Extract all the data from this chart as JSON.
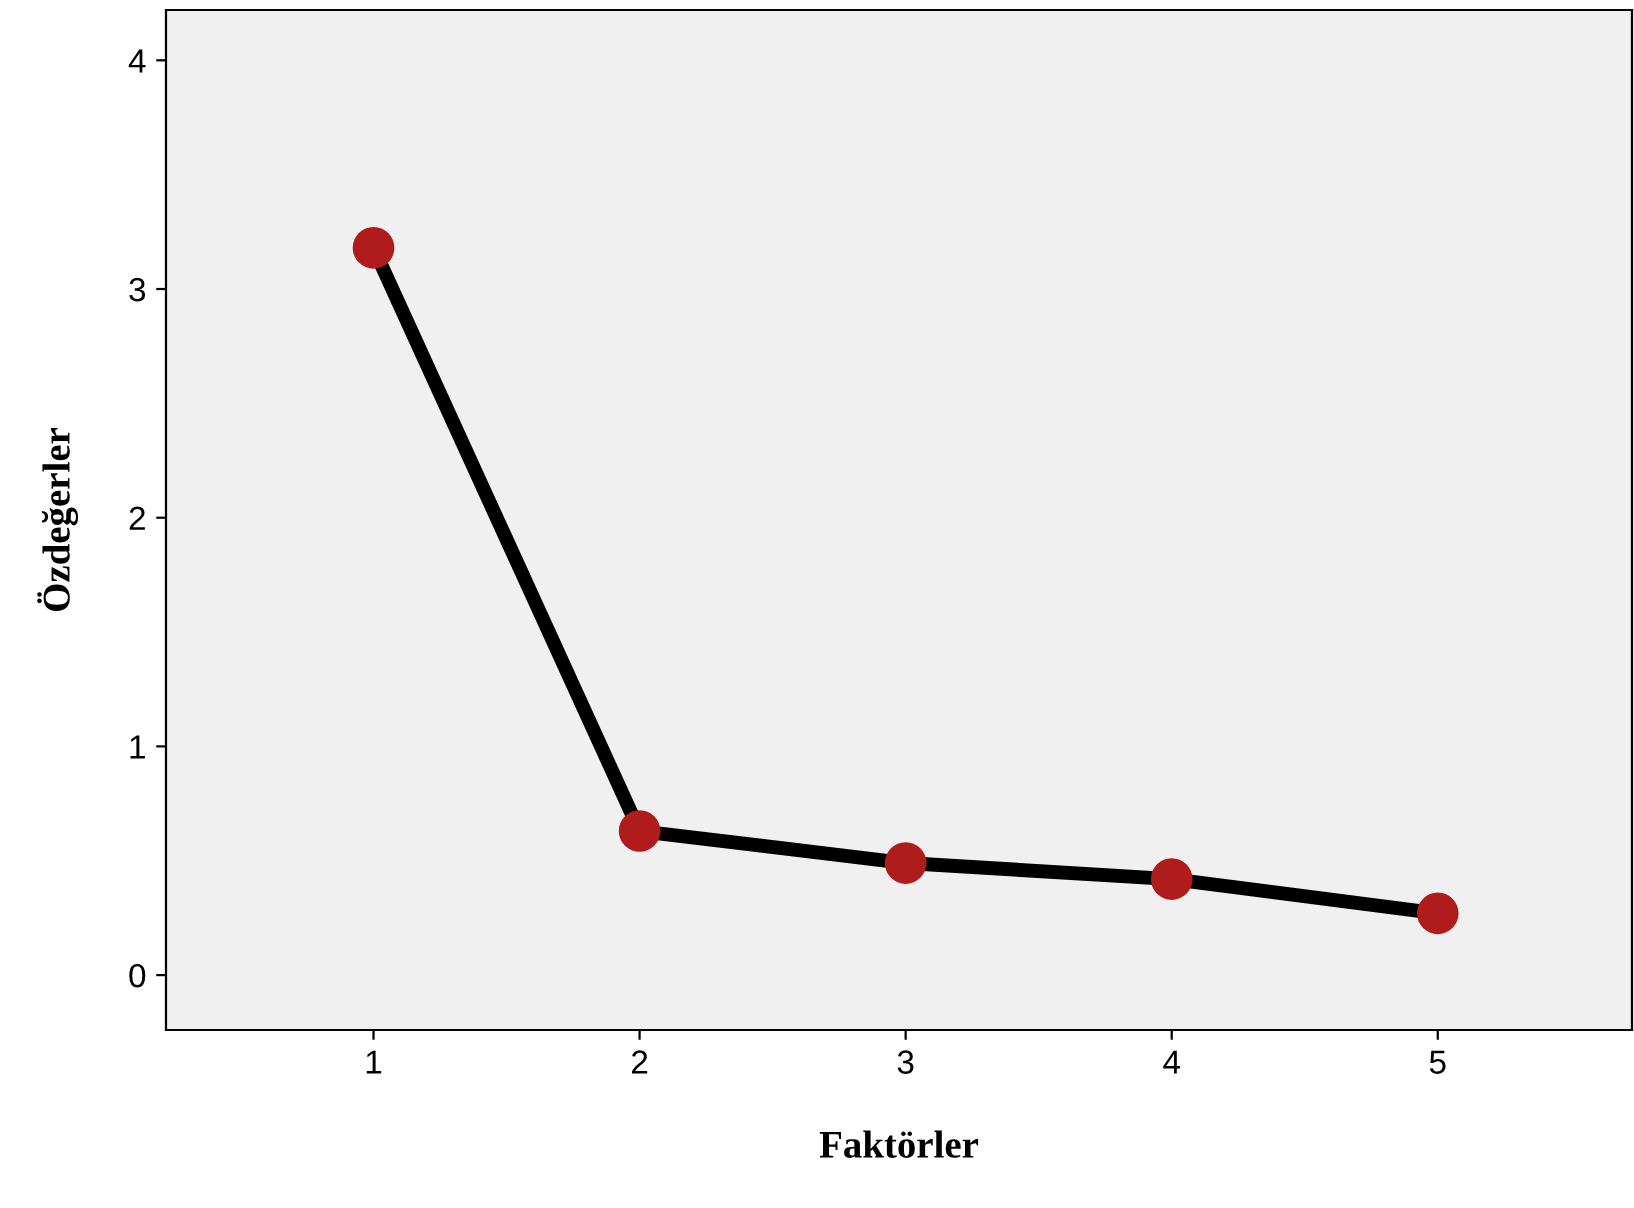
{
  "chart_data": {
    "type": "line",
    "xlabel": "Faktörler",
    "ylabel": "Özdeğerler",
    "x": [
      1,
      2,
      3,
      4,
      5
    ],
    "series": [
      {
        "color": "#000000",
        "colors": [
          "#b01c1c",
          "#b01c1c",
          "#b01c1c",
          "#b01c1c",
          "#b01c1c"
        ],
        "values": [
          3.18,
          0.63,
          0.49,
          0.42,
          0.27
        ]
      }
    ],
    "marker": "circle",
    "line_style": "solid",
    "xlim": [
      0.22,
      5.73
    ],
    "ylim": [
      -0.24,
      4.22
    ],
    "xticks": [
      1,
      2,
      3,
      4,
      5
    ],
    "yticks": [
      0,
      1,
      2,
      3,
      4
    ],
    "grid": false,
    "legend": false
  }
}
